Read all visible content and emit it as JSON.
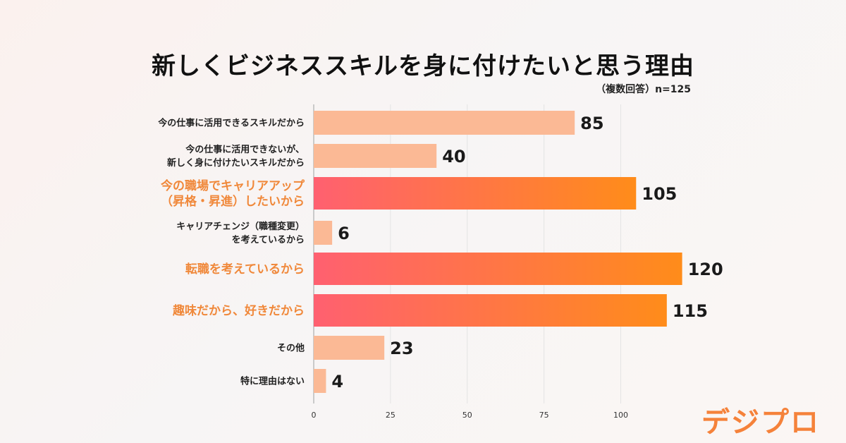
{
  "title": "新しくビジネススキルを身に付けたいと思う理由",
  "note": "（複数回答）n=125",
  "logo_text": "デジプロ",
  "colors": {
    "normal_bar": "#fbb995",
    "highlight_start": "#ff6070",
    "highlight_end": "#ff8c1a",
    "highlight_label": "#f0883a",
    "normal_label": "#222222",
    "value_label": "#1a1a1a",
    "axis": "#bbbbbb",
    "grid": "#e4e4e4"
  },
  "chart_data": {
    "type": "bar",
    "orientation": "horizontal",
    "title": "新しくビジネススキルを身に付けたいと思う理由",
    "categories": [
      [
        "今の仕事に活用できるスキルだから"
      ],
      [
        "今の仕事に活用できないが、",
        "新しく身に付けたいスキルだから"
      ],
      [
        "今の職場でキャリアアップ",
        "（昇格・昇進）したいから"
      ],
      [
        "キャリアチェンジ（職種変更）",
        "を考えているから"
      ],
      [
        "転職を考えているから"
      ],
      [
        "趣味だから、好きだから"
      ],
      [
        "その他"
      ],
      [
        "特に理由はない"
      ]
    ],
    "values": [
      85,
      40,
      105,
      6,
      120,
      115,
      23,
      4
    ],
    "highlighted": [
      false,
      false,
      true,
      false,
      true,
      true,
      false,
      false
    ],
    "xlim": [
      0,
      125
    ],
    "xticks": [
      0,
      25,
      50,
      75,
      100
    ],
    "grid": true,
    "xlabel": "",
    "ylabel": ""
  }
}
